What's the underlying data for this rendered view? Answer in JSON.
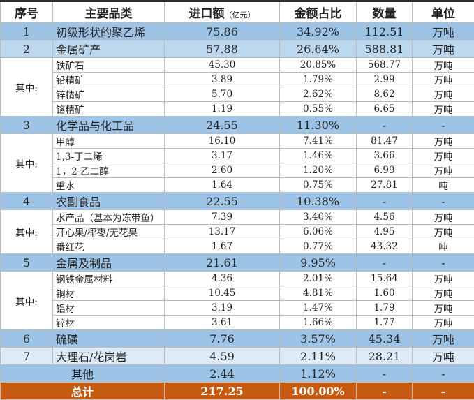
{
  "header": {
    "no": "序号",
    "category": "主要品类",
    "amount": "进口额",
    "amount_unit": "（亿元）",
    "share": "金额占比",
    "qty": "数量",
    "unit": "单位"
  },
  "rows": [
    {
      "type": "cat",
      "no": "1",
      "name": "初级形状的聚乙烯",
      "amount": "75.86",
      "share": "34.92%",
      "qty": "112.51",
      "unit": "万吨"
    },
    {
      "type": "cat2",
      "no": "2",
      "name": "金属矿产",
      "amount": "57.88",
      "share": "26.64%",
      "qty": "588.81",
      "unit": "万吨"
    },
    {
      "type": "sub",
      "group": "其中:",
      "span": 4,
      "name": "铁矿石",
      "amount": "45.30",
      "share": "20.85%",
      "qty": "568.77",
      "unit": "万吨"
    },
    {
      "type": "sub",
      "name": "铅精矿",
      "amount": "3.89",
      "share": "1.79%",
      "qty": "2.99",
      "unit": "万吨"
    },
    {
      "type": "sub",
      "name": "锌精矿",
      "amount": "5.70",
      "share": "2.62%",
      "qty": "8.62",
      "unit": "万吨"
    },
    {
      "type": "sub",
      "name": "铬精矿",
      "amount": "1.19",
      "share": "0.55%",
      "qty": "6.65",
      "unit": "万吨"
    },
    {
      "type": "cat",
      "no": "3",
      "name": "化学品与化工品",
      "amount": "24.55",
      "share": "11.30%",
      "qty": "-",
      "unit": "-"
    },
    {
      "type": "sub",
      "group": "其中:",
      "span": 4,
      "name": "甲醇",
      "amount": "16.10",
      "share": "7.41%",
      "qty": "81.47",
      "unit": "万吨"
    },
    {
      "type": "sub",
      "name": "1,3-丁二烯",
      "amount": "3.17",
      "share": "1.46%",
      "qty": "3.66",
      "unit": "万吨"
    },
    {
      "type": "sub",
      "name": "1，2-乙二醇",
      "amount": "2.60",
      "share": "1.20%",
      "qty": "6.99",
      "unit": "万吨"
    },
    {
      "type": "sub",
      "name": "重水",
      "amount": "1.64",
      "share": "0.75%",
      "qty": "27.81",
      "unit": "吨"
    },
    {
      "type": "cat",
      "no": "4",
      "name": "农副食品",
      "amount": "22.55",
      "share": "10.38%",
      "qty": "-",
      "unit": "-"
    },
    {
      "type": "sub",
      "group": "其中:",
      "span": 3,
      "name": "水产品（基本为冻带鱼）",
      "amount": "7.39",
      "share": "3.40%",
      "qty": "4.56",
      "unit": "万吨"
    },
    {
      "type": "sub",
      "name": "开心果/椰枣/无花果",
      "amount": "13.17",
      "share": "6.06%",
      "qty": "4.95",
      "unit": "万吨"
    },
    {
      "type": "sub",
      "name": "番红花",
      "amount": "1.67",
      "share": "0.77%",
      "qty": "43.32",
      "unit": "吨"
    },
    {
      "type": "cat",
      "no": "5",
      "name": "金属及制品",
      "amount": "21.61",
      "share": "9.95%",
      "qty": "-",
      "unit": "-"
    },
    {
      "type": "sub",
      "group": "其中:",
      "span": 4,
      "name": "钢铁金属材料",
      "amount": "4.36",
      "share": "2.01%",
      "qty": "15.64",
      "unit": "万吨"
    },
    {
      "type": "sub",
      "name": "铜材",
      "amount": "10.45",
      "share": "4.81%",
      "qty": "1.60",
      "unit": "万吨"
    },
    {
      "type": "sub",
      "name": "铝材",
      "amount": "3.19",
      "share": "1.47%",
      "qty": "1.79",
      "unit": "万吨"
    },
    {
      "type": "sub",
      "name": "锌材",
      "amount": "3.61",
      "share": "1.66%",
      "qty": "1.77",
      "unit": "万吨"
    },
    {
      "type": "cat",
      "no": "6",
      "name": "硫磺",
      "amount": "7.76",
      "share": "3.57%",
      "qty": "45.34",
      "unit": "万吨"
    },
    {
      "type": "cat3",
      "no": "7",
      "name": "大理石/花岗岩",
      "amount": "4.59",
      "share": "2.11%",
      "qty": "28.21",
      "unit": "万吨"
    },
    {
      "type": "other",
      "name": "其他",
      "amount": "2.44",
      "share": "1.12%",
      "qty": "-",
      "unit": "-"
    },
    {
      "type": "total",
      "name": "总计",
      "amount": "217.25",
      "share": "100.00%",
      "qty": "-",
      "unit": "-"
    }
  ]
}
